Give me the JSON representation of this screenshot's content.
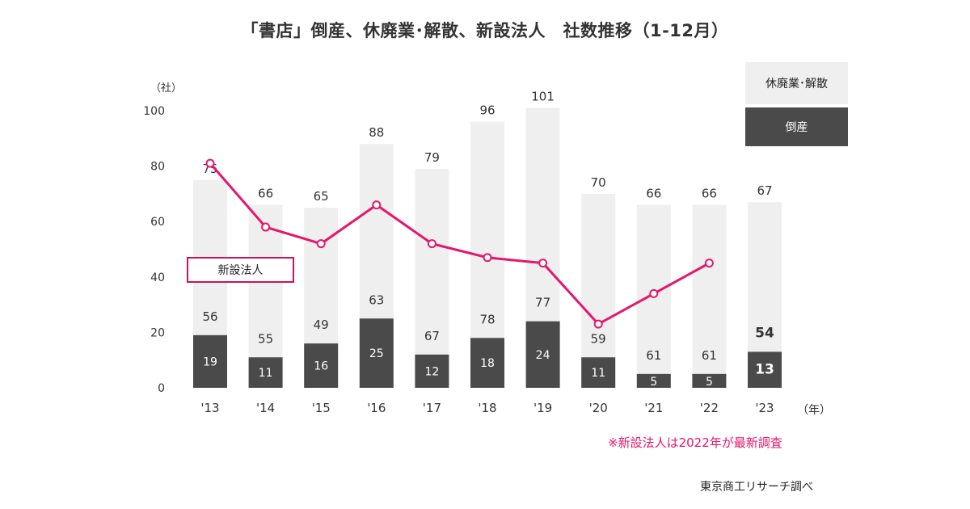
{
  "chart_data": {
    "type": "bar",
    "title": "「書店」倒産、休廃業･解散、新設法人　社数推移（1-12月）",
    "ylabel": "（社）",
    "xlabel": "（年）",
    "ylim": [
      0,
      100
    ],
    "yticks": [
      0,
      20,
      40,
      60,
      80,
      100
    ],
    "categories": [
      "'13",
      "'14",
      "'15",
      "'16",
      "'17",
      "'18",
      "'19",
      "'20",
      "'21",
      "'22",
      "'23"
    ],
    "series": [
      {
        "name": "休廃業･解散",
        "type": "bar",
        "values": [
          56,
          55,
          49,
          63,
          67,
          78,
          77,
          59,
          61,
          61,
          54
        ],
        "color": "#efefef"
      },
      {
        "name": "倒産",
        "type": "bar",
        "values": [
          19,
          11,
          16,
          25,
          12,
          18,
          24,
          11,
          5,
          5,
          13
        ],
        "color": "#4a4a4a"
      },
      {
        "name": "新設法人",
        "type": "line",
        "values": [
          81,
          58,
          52,
          66,
          52,
          47,
          45,
          23,
          34,
          45,
          null
        ],
        "color": "#e5166b"
      }
    ],
    "totals": [
      75,
      66,
      65,
      88,
      79,
      96,
      101,
      70,
      66,
      66,
      67
    ],
    "grid": false,
    "legend_position": "top-right"
  },
  "note": "※新設法人は2022年が最新調査",
  "source": "東京商工リサーチ調べ"
}
